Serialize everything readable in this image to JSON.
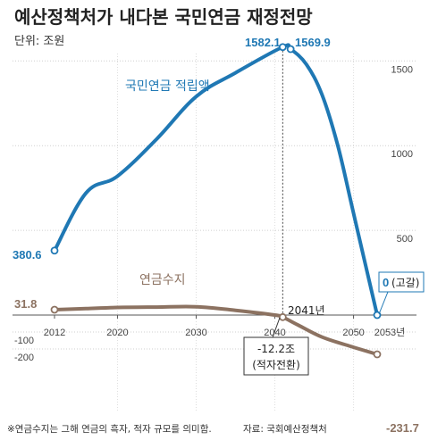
{
  "chart_data": {
    "type": "line",
    "title": "예산정책처가 내다본 국민연금 재정전망",
    "unit": "단위: 조원",
    "x_ticks": [
      "2012",
      "2020",
      "2030",
      "2040",
      "2050",
      "2053년"
    ],
    "y_ticks": [
      "1500",
      "1000",
      "500",
      "-100",
      "-200"
    ],
    "ylim": [
      -250,
      1650
    ],
    "series": [
      {
        "name": "국민연금 적립액",
        "color": "#1f78b4",
        "points": [
          [
            2012,
            380.6
          ],
          [
            2016,
            720
          ],
          [
            2020,
            820
          ],
          [
            2025,
            1040
          ],
          [
            2030,
            1290
          ],
          [
            2035,
            1430
          ],
          [
            2041,
            1582.1
          ],
          [
            2042,
            1569.9
          ],
          [
            2044,
            1480
          ],
          [
            2046,
            1300
          ],
          [
            2048,
            1000
          ],
          [
            2050,
            600
          ],
          [
            2053,
            0
          ]
        ]
      },
      {
        "name": "연금수지",
        "color": "#8c7261",
        "points": [
          [
            2012,
            31.8
          ],
          [
            2016,
            38
          ],
          [
            2020,
            45
          ],
          [
            2025,
            47
          ],
          [
            2030,
            49
          ],
          [
            2035,
            28
          ],
          [
            2040,
            0
          ],
          [
            2041,
            -12.2
          ],
          [
            2043,
            -60
          ],
          [
            2046,
            -130
          ],
          [
            2050,
            -190
          ],
          [
            2053,
            -231.7
          ]
        ]
      }
    ],
    "data_labels": {
      "blue_start": "380.6",
      "blue_peak": "1582.1",
      "blue_peak2": "1569.9",
      "blue_end": "0",
      "blue_end_suffix": "(고갈)",
      "brown_start": "31.8",
      "brown_end": "-231.7",
      "turn_year": "2041년",
      "turn_value": "-12.2조",
      "turn_note": "(적자전환)"
    },
    "footnote": "※연금수지는 그해 연금의 흑자, 적자 규모를 의미함.",
    "source": "자료: 국회예산정책처"
  }
}
